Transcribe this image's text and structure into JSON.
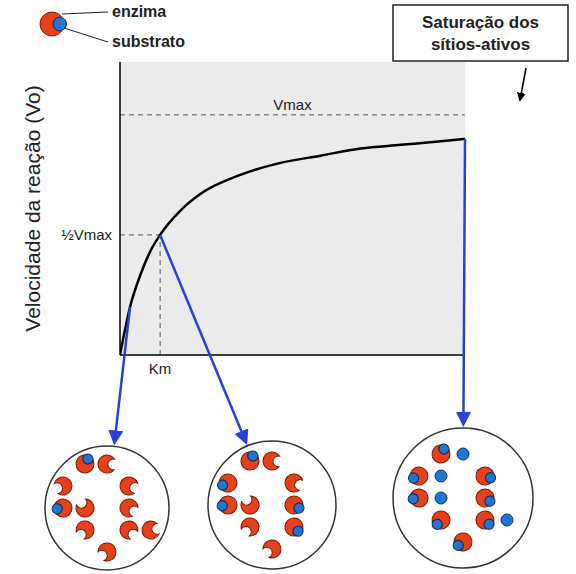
{
  "chart_data": {
    "type": "line",
    "y_label": "Velocidade da reação (Vo)",
    "x": [
      0,
      0.25,
      0.5,
      0.75,
      1,
      1.5,
      2,
      3,
      4,
      5,
      6,
      7,
      8,
      8.6
    ],
    "values": [
      0,
      0.2,
      0.33,
      0.43,
      0.5,
      0.6,
      0.67,
      0.75,
      0.8,
      0.83,
      0.86,
      0.875,
      0.89,
      0.9
    ],
    "color": "#000000",
    "xlim": [
      0,
      8.6
    ],
    "ylim": [
      0,
      1.22
    ],
    "xticks": [
      {
        "value": 1,
        "label": "Km"
      }
    ],
    "yticks": [
      {
        "value": 0.5,
        "label": "½Vmax"
      }
    ],
    "reference_lines": [
      {
        "axis": "y",
        "value": 1,
        "label": "Vmax"
      }
    ],
    "grid": false,
    "annotations": {
      "enzyme_label": "enzima",
      "substrate_label": "substrato",
      "callout": "Saturação dos sítios-ativos"
    },
    "insets": [
      {
        "at_x": 0.25,
        "enzymes": 11,
        "substrates": 2
      },
      {
        "at_x": 1,
        "enzymes": 10,
        "substrates": 5
      },
      {
        "at_x": 8.6,
        "enzymes": 8,
        "substrates": 12
      }
    ]
  }
}
